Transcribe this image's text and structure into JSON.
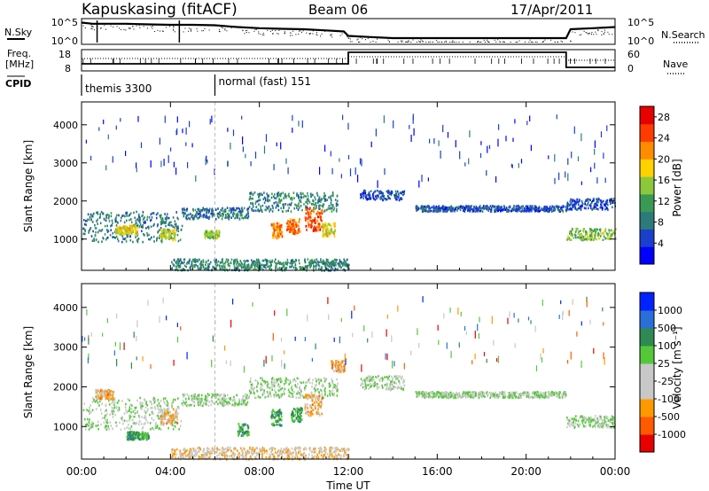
{
  "header": {
    "station": "Kapuskasing (fitACF)",
    "beam": "Beam 06",
    "date": "17/Apr/2011"
  },
  "status_panels": {
    "left_labels": {
      "nsky": "N.Sky",
      "freq_line1": "Freq.",
      "freq_line2": "[MHz]",
      "cpid": "CPID"
    },
    "right_labels": {
      "nsearch": "N.Search",
      "nave": "Nave"
    },
    "noise_ticks_left": [
      "10^5",
      "10^0"
    ],
    "noise_ticks_right": [
      "10^5",
      "10^0"
    ],
    "freq_ticks_left": [
      "18",
      "8"
    ],
    "freq_ticks_right": [
      "60",
      "0"
    ],
    "cpid_entries": [
      {
        "label": "themis 3300",
        "start_hour": 0
      },
      {
        "label": "normal (fast) 151",
        "start_hour": 6
      }
    ]
  },
  "colors": {
    "power": [
      "#0000ff",
      "#1a3fcc",
      "#2c7a7a",
      "#3a9a55",
      "#8cc83c",
      "#ffd200",
      "#ff8c00",
      "#ff3c00",
      "#e60000"
    ],
    "velocity": [
      "#0022ff",
      "#2a6fd8",
      "#2e8a50",
      "#55c83a",
      "#c8c8c8",
      "#c8c8c8",
      "#ff9900",
      "#ff5a00",
      "#e60000"
    ]
  },
  "chart_data": [
    {
      "type": "heatmap",
      "panel": "power",
      "xlabel": "Time UT",
      "ylabel": "Slant Range [km]",
      "xlim": [
        0,
        24
      ],
      "ylim": [
        180,
        4600
      ],
      "x_ticks": [
        "00:00",
        "04:00",
        "08:00",
        "12:00",
        "16:00",
        "20:00",
        "00:00"
      ],
      "y_ticks": [
        "1000",
        "2000",
        "3000",
        "4000"
      ],
      "y_tick_values": [
        1000,
        2000,
        3000,
        4000
      ],
      "colorbar_label": "Power [dB]",
      "colorbar_ticks": [
        "4",
        "8",
        "12",
        "16",
        "20",
        "24",
        "28"
      ],
      "colorbar_range": [
        0,
        30
      ],
      "scatter_bands": [
        {
          "t0": 0.0,
          "t1": 4.5,
          "r0": 950,
          "r1": 1750,
          "level": 0.25
        },
        {
          "t0": 4.5,
          "t1": 7.5,
          "r0": 1550,
          "r1": 1850,
          "level": 0.25
        },
        {
          "t0": 7.5,
          "t1": 11.5,
          "r0": 1750,
          "r1": 2250,
          "level": 0.3
        },
        {
          "t0": 12.5,
          "t1": 14.5,
          "r0": 2050,
          "r1": 2300,
          "level": 0.15
        },
        {
          "t0": 15.0,
          "t1": 21.8,
          "r0": 1750,
          "r1": 1900,
          "level": 0.15
        },
        {
          "t0": 21.8,
          "t1": 24.0,
          "r0": 1000,
          "r1": 1300,
          "level": 0.45
        },
        {
          "t0": 21.8,
          "t1": 24.0,
          "r0": 1800,
          "r1": 2100,
          "level": 0.15
        },
        {
          "t0": 4.0,
          "t1": 12.0,
          "r0": 200,
          "r1": 500,
          "level": 0.3
        }
      ],
      "patches": [
        {
          "t0": 1.5,
          "t1": 2.5,
          "r0": 1150,
          "r1": 1400,
          "level": 0.6
        },
        {
          "t0": 3.5,
          "t1": 4.2,
          "r0": 1000,
          "r1": 1300,
          "level": 0.55
        },
        {
          "t0": 5.5,
          "t1": 6.2,
          "r0": 1050,
          "r1": 1250,
          "level": 0.5
        },
        {
          "t0": 8.5,
          "t1": 9.0,
          "r0": 1050,
          "r1": 1450,
          "level": 0.75
        },
        {
          "t0": 9.2,
          "t1": 9.8,
          "r0": 1150,
          "r1": 1550,
          "level": 0.8
        },
        {
          "t0": 10.0,
          "t1": 10.8,
          "r0": 1250,
          "r1": 1850,
          "level": 0.85
        },
        {
          "t0": 10.8,
          "t1": 11.4,
          "r0": 1100,
          "r1": 1450,
          "level": 0.6
        }
      ],
      "sparse_range": [
        2500,
        4300
      ]
    },
    {
      "type": "heatmap",
      "panel": "velocity",
      "xlabel": "Time UT",
      "ylabel": "Slant Range [km]",
      "xlim": [
        0,
        24
      ],
      "ylim": [
        180,
        4600
      ],
      "x_ticks": [
        "00:00",
        "04:00",
        "08:00",
        "12:00",
        "16:00",
        "20:00",
        "00:00"
      ],
      "y_ticks": [
        "1000",
        "2000",
        "3000",
        "4000"
      ],
      "y_tick_values": [
        1000,
        2000,
        3000,
        4000
      ],
      "colorbar_label": "Velocity [m s⁻¹]",
      "colorbar_ticks": [
        "1000",
        "500",
        "100",
        "25",
        "-25",
        "-100",
        "-500",
        "-1000"
      ],
      "scatter_bands": [
        {
          "t0": 0.0,
          "t1": 4.5,
          "r0": 950,
          "r1": 1750,
          "level": 0.45
        },
        {
          "t0": 4.5,
          "t1": 7.5,
          "r0": 1550,
          "r1": 1850,
          "level": 0.45
        },
        {
          "t0": 7.5,
          "t1": 11.5,
          "r0": 1750,
          "r1": 2250,
          "level": 0.45
        },
        {
          "t0": 12.5,
          "t1": 14.5,
          "r0": 1950,
          "r1": 2300,
          "level": 0.45
        },
        {
          "t0": 15.0,
          "t1": 21.8,
          "r0": 1750,
          "r1": 1900,
          "level": 0.45
        },
        {
          "t0": 21.8,
          "t1": 24.0,
          "r0": 1000,
          "r1": 1300,
          "level": 0.45
        },
        {
          "t0": 4.0,
          "t1": 12.0,
          "r0": 200,
          "r1": 500,
          "level": 0.65
        }
      ],
      "patches": [
        {
          "t0": 0.6,
          "t1": 1.4,
          "r0": 1700,
          "r1": 1950,
          "level": 0.7
        },
        {
          "t0": 2.0,
          "t1": 3.0,
          "r0": 700,
          "r1": 900,
          "level": 0.3
        },
        {
          "t0": 3.5,
          "t1": 4.3,
          "r0": 1100,
          "r1": 1500,
          "level": 0.7
        },
        {
          "t0": 7.0,
          "t1": 7.5,
          "r0": 800,
          "r1": 1100,
          "level": 0.3
        },
        {
          "t0": 8.5,
          "t1": 9.0,
          "r0": 1050,
          "r1": 1450,
          "level": 0.3
        },
        {
          "t0": 9.4,
          "t1": 9.9,
          "r0": 1150,
          "r1": 1500,
          "level": 0.3
        },
        {
          "t0": 10.0,
          "t1": 10.8,
          "r0": 1300,
          "r1": 1850,
          "level": 0.7
        },
        {
          "t0": 11.2,
          "t1": 11.8,
          "r0": 2400,
          "r1": 2700,
          "level": 0.75
        }
      ],
      "sparse_range": [
        2500,
        4300
      ]
    }
  ],
  "status_series": {
    "nsky_hours": [
      0,
      0.5,
      1,
      2,
      3,
      4,
      5,
      6,
      7,
      8,
      9,
      10,
      11,
      11.8,
      12,
      13,
      14,
      16,
      18,
      20,
      21.8,
      22,
      23,
      24
    ],
    "nsky_levels": [
      0.9,
      0.85,
      0.85,
      0.85,
      0.82,
      0.8,
      0.8,
      0.78,
      0.7,
      0.65,
      0.62,
      0.6,
      0.55,
      0.5,
      0.3,
      0.25,
      0.2,
      0.2,
      0.2,
      0.2,
      0.2,
      0.6,
      0.65,
      0.7
    ],
    "freq_hours": [
      0,
      12,
      12,
      21.8,
      21.8,
      24
    ],
    "freq_levels": [
      0.3,
      0.3,
      0.95,
      0.95,
      0.1,
      0.1
    ],
    "nave_hours": [
      0,
      12,
      12,
      21.8,
      21.8,
      24
    ],
    "nave_levels": [
      0.6,
      0.6,
      0.7,
      0.7,
      0.5,
      0.5
    ]
  }
}
